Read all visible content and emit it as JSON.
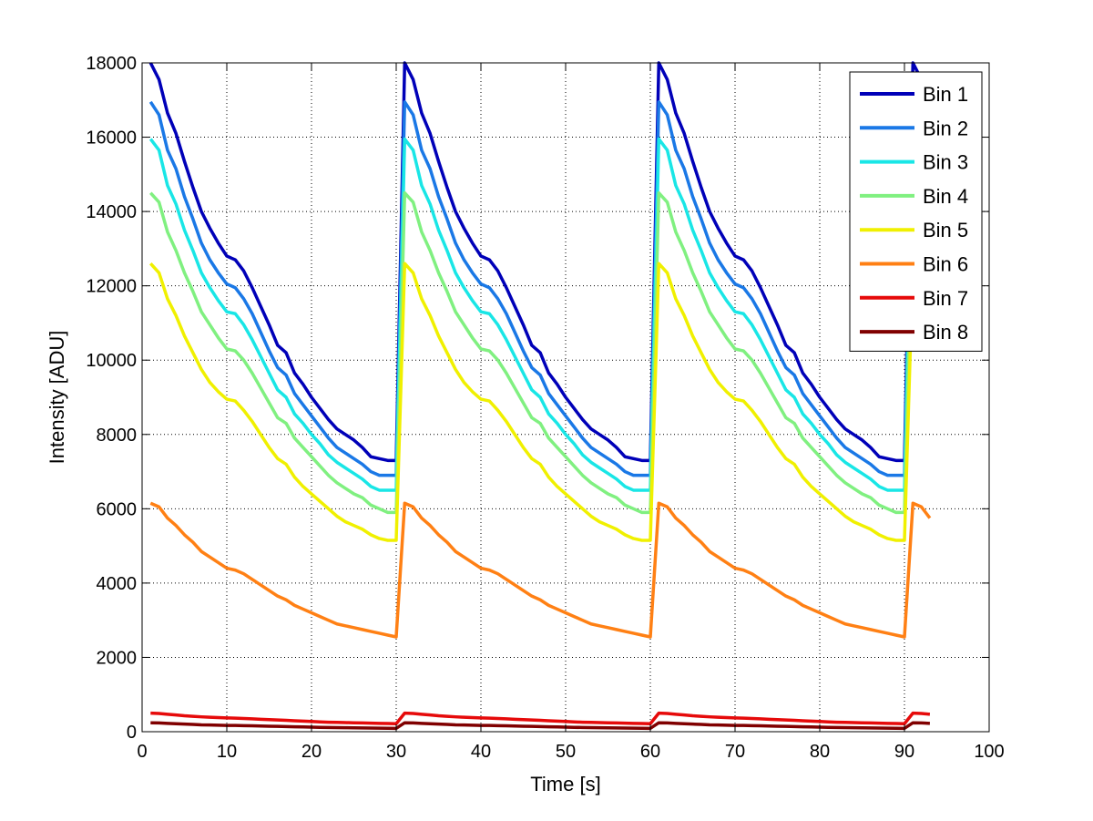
{
  "chart_data": {
    "type": "line",
    "title": "",
    "xlabel": "Time [s]",
    "ylabel": "Intensity [ADU]",
    "xlim": [
      0,
      100
    ],
    "ylim": [
      0,
      18000
    ],
    "xticks": [
      0,
      10,
      20,
      30,
      40,
      50,
      60,
      70,
      80,
      90,
      100
    ],
    "yticks": [
      0,
      2000,
      4000,
      6000,
      8000,
      10000,
      12000,
      14000,
      16000,
      18000
    ],
    "grid": true,
    "legend_position": "top-right",
    "period_s": 30,
    "x_end": 93,
    "x": [
      1,
      2,
      3,
      4,
      5,
      6,
      7,
      8,
      9,
      10,
      11,
      12,
      13,
      14,
      15,
      16,
      17,
      18,
      19,
      20,
      21,
      22,
      23,
      24,
      25,
      26,
      27,
      28,
      29,
      30
    ],
    "series": [
      {
        "name": "Bin 1",
        "color": "#0000b8",
        "values": [
          18000,
          17550,
          16650,
          16100,
          15350,
          14650,
          14000,
          13550,
          13150,
          12800,
          12700,
          12400,
          11950,
          11450,
          10950,
          10400,
          10200,
          9650,
          9350,
          9000,
          8700,
          8400,
          8150,
          8000,
          7850,
          7650,
          7400,
          7350,
          7300,
          7300
        ]
      },
      {
        "name": "Bin 2",
        "color": "#1a78e6",
        "values": [
          16950,
          16600,
          15650,
          15150,
          14400,
          13800,
          13150,
          12700,
          12350,
          12050,
          11950,
          11650,
          11250,
          10750,
          10250,
          9800,
          9600,
          9100,
          8800,
          8500,
          8200,
          7900,
          7650,
          7500,
          7350,
          7200,
          7000,
          6900,
          6900,
          6900
        ]
      },
      {
        "name": "Bin 3",
        "color": "#19e6e6",
        "values": [
          15950,
          15650,
          14700,
          14200,
          13500,
          12950,
          12350,
          11950,
          11600,
          11300,
          11250,
          10950,
          10550,
          10100,
          9650,
          9200,
          9000,
          8550,
          8300,
          8000,
          7750,
          7450,
          7250,
          7100,
          6950,
          6800,
          6600,
          6500,
          6500,
          6500
        ]
      },
      {
        "name": "Bin 4",
        "color": "#80f080",
        "values": [
          14500,
          14250,
          13450,
          12950,
          12350,
          11850,
          11300,
          10950,
          10600,
          10300,
          10250,
          10000,
          9650,
          9250,
          8850,
          8450,
          8300,
          7900,
          7650,
          7400,
          7150,
          6900,
          6700,
          6550,
          6400,
          6300,
          6100,
          6000,
          5900,
          5900
        ]
      },
      {
        "name": "Bin 5",
        "color": "#f0f000",
        "values": [
          12600,
          12350,
          11650,
          11200,
          10650,
          10200,
          9750,
          9400,
          9150,
          8950,
          8900,
          8650,
          8350,
          8000,
          7650,
          7350,
          7200,
          6850,
          6600,
          6400,
          6200,
          6000,
          5800,
          5650,
          5550,
          5450,
          5300,
          5200,
          5150,
          5150
        ]
      },
      {
        "name": "Bin 6",
        "color": "#ff8014",
        "values": [
          6150,
          6050,
          5750,
          5550,
          5300,
          5100,
          4850,
          4700,
          4550,
          4400,
          4350,
          4250,
          4100,
          3950,
          3800,
          3650,
          3550,
          3400,
          3300,
          3200,
          3100,
          3000,
          2900,
          2850,
          2800,
          2750,
          2700,
          2650,
          2600,
          2550
        ]
      },
      {
        "name": "Bin 7",
        "color": "#e60a0a",
        "values": [
          500,
          490,
          470,
          450,
          430,
          415,
          400,
          390,
          380,
          370,
          365,
          355,
          345,
          335,
          325,
          315,
          305,
          295,
          285,
          275,
          265,
          255,
          250,
          245,
          240,
          235,
          230,
          225,
          220,
          215
        ]
      },
      {
        "name": "Bin 8",
        "color": "#800000",
        "values": [
          240,
          235,
          225,
          215,
          205,
          195,
          185,
          180,
          175,
          170,
          168,
          163,
          158,
          153,
          148,
          143,
          138,
          133,
          128,
          123,
          118,
          113,
          110,
          107,
          104,
          101,
          98,
          95,
          92,
          90
        ]
      }
    ]
  }
}
